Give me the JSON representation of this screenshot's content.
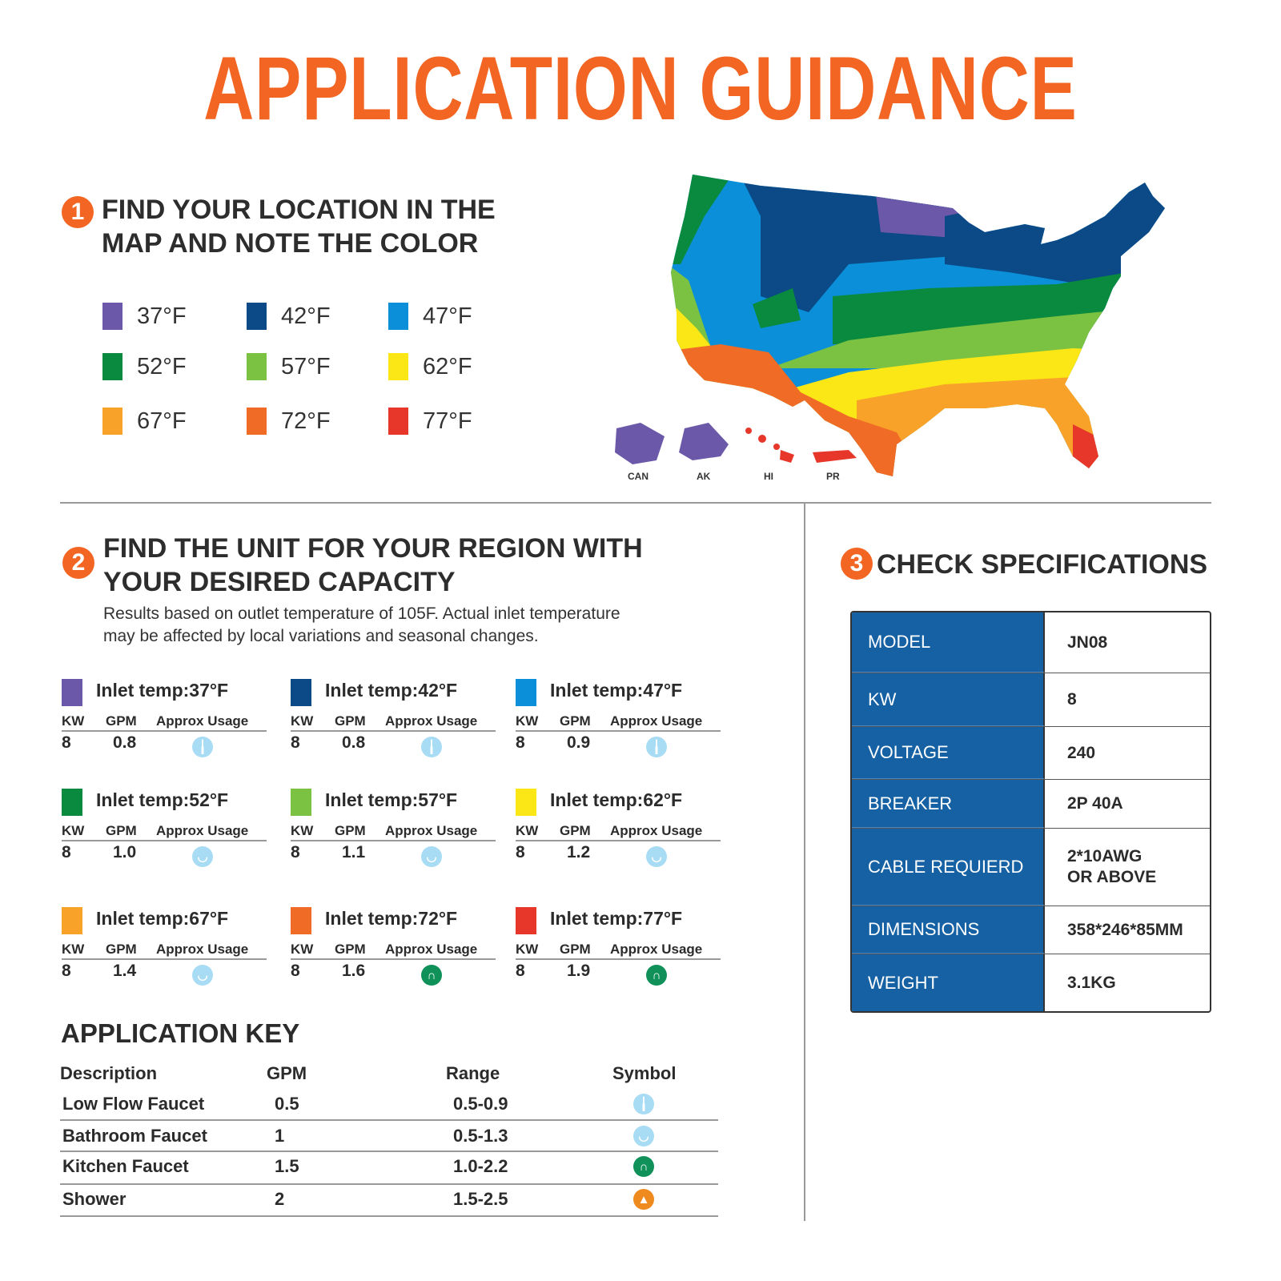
{
  "title": "APPLICATION GUIDANCE",
  "colors": {
    "accent": "#f26522",
    "spec_blue": "#1561a4"
  },
  "step1": {
    "number": "1",
    "line1": "FIND YOUR LOCATION IN THE",
    "line2": "MAP AND NOTE THE COLOR",
    "legend": [
      {
        "label": "37°F",
        "color": "#6b58a8"
      },
      {
        "label": "42°F",
        "color": "#0b4a86"
      },
      {
        "label": "47°F",
        "color": "#0a8fd8"
      },
      {
        "label": "52°F",
        "color": "#0a8a3e"
      },
      {
        "label": "57°F",
        "color": "#7cc242"
      },
      {
        "label": "62°F",
        "color": "#fbe616"
      },
      {
        "label": "67°F",
        "color": "#f9a22a"
      },
      {
        "label": "72°F",
        "color": "#ef6b26"
      },
      {
        "label": "77°F",
        "color": "#e7372a"
      }
    ]
  },
  "map": {
    "labels": [
      "CAN",
      "AK",
      "HI",
      "PR"
    ]
  },
  "step2": {
    "number": "2",
    "line1": "FIND THE UNIT FOR YOUR REGION WITH",
    "line2": "YOUR DESIRED CAPACITY",
    "note1": "Results based on outlet temperature of 105F. Actual inlet temperature",
    "note2": "may be affected by local variations and seasonal changes.",
    "headers": {
      "kw": "KW",
      "gpm": "GPM",
      "usage": "Approx Usage"
    },
    "units": [
      {
        "title": "Inlet temp:37°F",
        "color": "#6b58a8",
        "kw": "8",
        "gpm": "0.8",
        "icon": "low-flow-faucet"
      },
      {
        "title": "Inlet temp:42°F",
        "color": "#0b4a86",
        "kw": "8",
        "gpm": "0.8",
        "icon": "low-flow-faucet"
      },
      {
        "title": "Inlet temp:47°F",
        "color": "#0a8fd8",
        "kw": "8",
        "gpm": "0.9",
        "icon": "low-flow-faucet"
      },
      {
        "title": "Inlet temp:52°F",
        "color": "#0a8a3e",
        "kw": "8",
        "gpm": "1.0",
        "icon": "bathroom-faucet"
      },
      {
        "title": "Inlet temp:57°F",
        "color": "#7cc242",
        "kw": "8",
        "gpm": "1.1",
        "icon": "bathroom-faucet"
      },
      {
        "title": "Inlet temp:62°F",
        "color": "#fbe616",
        "kw": "8",
        "gpm": "1.2",
        "icon": "bathroom-faucet"
      },
      {
        "title": "Inlet temp:67°F",
        "color": "#f9a22a",
        "kw": "8",
        "gpm": "1.4",
        "icon": "bathroom-faucet"
      },
      {
        "title": "Inlet temp:72°F",
        "color": "#ef6b26",
        "kw": "8",
        "gpm": "1.6",
        "icon": "kitchen-faucet"
      },
      {
        "title": "Inlet temp:77°F",
        "color": "#e7372a",
        "kw": "8",
        "gpm": "1.9",
        "icon": "kitchen-faucet"
      }
    ]
  },
  "key": {
    "title": "APPLICATION KEY",
    "headers": [
      "Description",
      "GPM",
      "Range",
      "Symbol"
    ],
    "rows": [
      {
        "desc": "Low Flow Faucet",
        "gpm": "0.5",
        "range": "0.5-0.9",
        "icon": "low-flow-faucet"
      },
      {
        "desc": "Bathroom Faucet",
        "gpm": "1",
        "range": "0.5-1.3",
        "icon": "bathroom-faucet"
      },
      {
        "desc": "Kitchen Faucet",
        "gpm": "1.5",
        "range": "1.0-2.2",
        "icon": "kitchen-faucet"
      },
      {
        "desc": "Shower",
        "gpm": "2",
        "range": "1.5-2.5",
        "icon": "shower"
      }
    ]
  },
  "step3": {
    "number": "3",
    "heading": "CHECK SPECIFICATIONS",
    "specs": [
      {
        "k": "MODEL",
        "v": "JN08"
      },
      {
        "k": "KW",
        "v": "8"
      },
      {
        "k": "VOLTAGE",
        "v": "240"
      },
      {
        "k": "BREAKER",
        "v": "2P 40A"
      },
      {
        "k": "CABLE REQUIERD",
        "v": "2*10AWG\nOR ABOVE"
      },
      {
        "k": "DIMENSIONS",
        "v": "358*246*85MM"
      },
      {
        "k": "WEIGHT",
        "v": "3.1KG"
      }
    ]
  }
}
